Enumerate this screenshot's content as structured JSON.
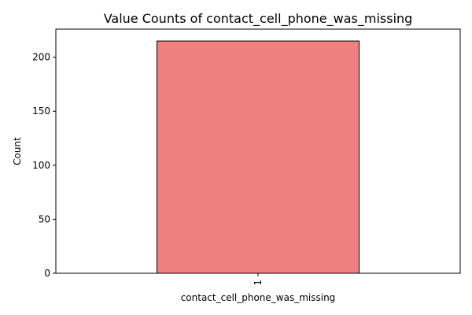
{
  "chart_data": {
    "type": "bar",
    "title": "Value Counts of contact_cell_phone_was_missing",
    "xlabel": "contact_cell_phone_was_missing",
    "ylabel": "Count",
    "categories": [
      "1"
    ],
    "values": [
      215
    ],
    "ylim": [
      0,
      226
    ],
    "yticks": [
      0,
      50,
      100,
      150,
      200
    ],
    "ytick_labels": [
      "0",
      "50",
      "100",
      "150",
      "200"
    ],
    "grid": false,
    "legend": "none",
    "bar_color": "#f08080",
    "bar_edge_color": "#000000"
  }
}
